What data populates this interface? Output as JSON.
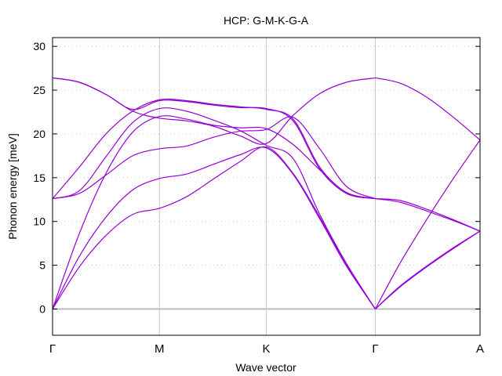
{
  "chart_data": {
    "type": "line",
    "title": "HCP: G-M-K-G-A",
    "xlabel": "Wave vector",
    "ylabel": "Phonon energy [meV]",
    "ylim": [
      -3,
      31
    ],
    "yticks": [
      0,
      5,
      10,
      15,
      20,
      25,
      30
    ],
    "xlim": [
      0,
      5.28
    ],
    "high_symmetry_points": [
      {
        "label": "Γ",
        "x": 0
      },
      {
        "label": "M",
        "x": 1.0
      },
      {
        "label": "K",
        "x": 2.0
      },
      {
        "label": "Γ",
        "x": 3.02
      },
      {
        "label": "A",
        "x": 4.0
      }
    ],
    "grid": "dotted horizontal lines at y ticks; solid vertical lines at high-symmetry points",
    "zero_line": true,
    "colors": {
      "bands": "#9400d3",
      "grid": "#c8c8c8",
      "zero_line": "#bbbbbb"
    },
    "series": [
      {
        "x": [
          0,
          0.25,
          0.5,
          0.75,
          1.0,
          1.25,
          1.5,
          1.75,
          2.0,
          2.25,
          2.5,
          2.75,
          3.02,
          3.25,
          3.5,
          3.75,
          4.0
        ],
        "values": [
          0,
          4.8,
          8.4,
          10.8,
          11.5,
          12.8,
          14.8,
          16.8,
          18.5,
          15.5,
          10.5,
          5.0,
          0,
          2.5,
          4.8,
          6.9,
          8.9
        ]
      },
      {
        "x": [
          0,
          0.25,
          0.5,
          0.75,
          1.0,
          1.25,
          1.5,
          1.75,
          2.0,
          2.25,
          2.5,
          2.75,
          3.02,
          3.25,
          3.5,
          3.75,
          4.0
        ],
        "values": [
          0,
          6.0,
          10.5,
          13.6,
          14.9,
          15.4,
          16.5,
          17.6,
          18.4,
          15.4,
          10.3,
          4.9,
          0,
          2.6,
          4.9,
          7.0,
          8.9
        ]
      },
      {
        "x": [
          0,
          0.25,
          0.5,
          0.75,
          1.0,
          1.25,
          1.5,
          1.75,
          2.0,
          2.25,
          2.5,
          2.75,
          3.02,
          3.25,
          3.5,
          3.75,
          4.0
        ],
        "values": [
          0,
          8.6,
          15.5,
          20.2,
          22.0,
          21.7,
          21.0,
          20.7,
          20.6,
          18.8,
          15.9,
          13.3,
          12.6,
          12.2,
          11.2,
          10.1,
          8.9
        ]
      },
      {
        "x": [
          0,
          0.25,
          0.5,
          0.75,
          1.0,
          1.25,
          1.5,
          1.75,
          2.0,
          2.25,
          2.5,
          2.75,
          3.02,
          3.25,
          3.5,
          3.75,
          4.0
        ],
        "values": [
          12.6,
          13.2,
          15.3,
          17.5,
          18.3,
          18.6,
          19.6,
          20.3,
          20.5,
          21.9,
          18.3,
          14.0,
          12.6,
          12.4,
          11.4,
          10.2,
          8.9
        ]
      },
      {
        "x": [
          0,
          0.25,
          0.5,
          0.75,
          1.0,
          1.25,
          1.5,
          1.75,
          2.0,
          2.25,
          2.5,
          2.75,
          3.02,
          3.25,
          3.5,
          3.75,
          4.0
        ],
        "values": [
          12.6,
          13.5,
          17.4,
          21.3,
          22.9,
          22.6,
          21.6,
          20.4,
          18.7,
          17.2,
          10.8,
          5.2,
          0,
          5.2,
          10.2,
          14.9,
          19.3
        ]
      },
      {
        "x": [
          0,
          0.25,
          0.5,
          0.75,
          1.0,
          1.25,
          1.5,
          1.75,
          2.0,
          2.25,
          2.5,
          2.75,
          3.02,
          3.25,
          3.5,
          3.75,
          4.0
        ],
        "values": [
          26.4,
          25.9,
          24.5,
          22.6,
          21.8,
          21.5,
          20.9,
          19.8,
          18.9,
          22.1,
          24.6,
          25.9,
          26.4,
          25.8,
          24.2,
          21.9,
          19.3
        ]
      },
      {
        "x": [
          0,
          0.25,
          0.5,
          0.75,
          1.0,
          1.25,
          1.5,
          1.75,
          2.0,
          2.25,
          2.5,
          2.75,
          3.02
        ],
        "values": [
          26.4,
          25.9,
          24.5,
          22.8,
          23.8,
          23.7,
          23.3,
          23.0,
          22.9,
          21.5,
          16.0,
          13.2,
          12.6
        ]
      },
      {
        "x": [
          0,
          0.25,
          0.5,
          0.75,
          1.0,
          1.25,
          1.5,
          1.75,
          2.0,
          2.25,
          2.5,
          2.75,
          3.02
        ],
        "values": [
          12.6,
          16.2,
          20.0,
          22.6,
          23.9,
          23.8,
          23.4,
          23.1,
          22.8,
          21.7,
          16.2,
          13.3,
          12.6
        ]
      }
    ]
  }
}
